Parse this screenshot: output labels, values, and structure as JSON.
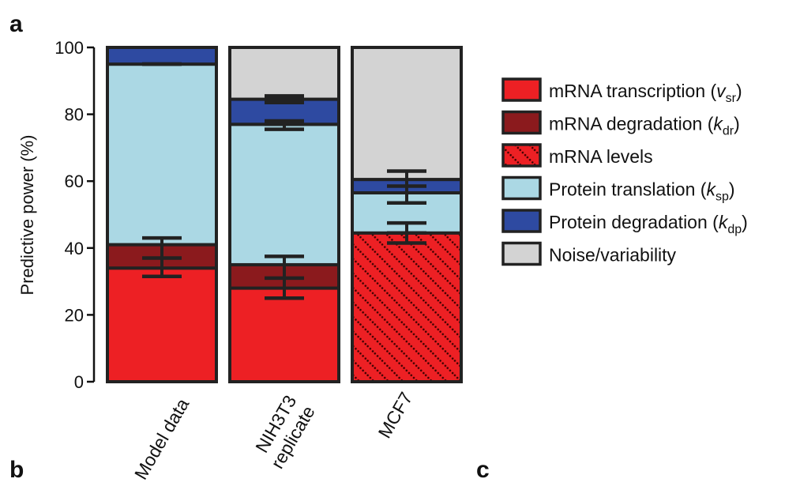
{
  "panel_labels": {
    "a": "a",
    "b": "b",
    "c": "c"
  },
  "chart_data": {
    "type": "bar",
    "stacked": true,
    "ylabel": "Predictive power (%)",
    "ylim": [
      0,
      100
    ],
    "yticks": [
      0,
      20,
      40,
      60,
      80,
      100
    ],
    "ytick_labels": [
      "0",
      "20",
      "40",
      "60",
      "80",
      "100"
    ],
    "categories": [
      {
        "lines": [
          "Model data"
        ]
      },
      {
        "lines": [
          "NIH3T3",
          "replicate"
        ]
      },
      {
        "lines": [
          "MCF7"
        ]
      }
    ],
    "series": [
      {
        "key": "mrna_transcription",
        "name_main": "mRNA transcription (",
        "name_italic": "v",
        "name_sub": "sr",
        "name_tail": ")",
        "color": "#ed2024",
        "values": [
          34,
          28,
          0
        ]
      },
      {
        "key": "mrna_degradation",
        "name_main": "mRNA degradation (",
        "name_italic": "k",
        "name_sub": "dr",
        "name_tail": ")",
        "color": "#8b1a1d",
        "values": [
          7,
          7,
          0
        ]
      },
      {
        "key": "mrna_levels",
        "name_main": "mRNA levels",
        "name_italic": "",
        "name_sub": "",
        "name_tail": "",
        "color": "#ed2024",
        "pattern": "dotted-diagonal",
        "values": [
          0,
          0,
          44.5
        ]
      },
      {
        "key": "protein_translation",
        "name_main": "Protein translation (",
        "name_italic": "k",
        "name_sub": "sp",
        "name_tail": ")",
        "color": "#abd8e4",
        "values": [
          54,
          42,
          12
        ]
      },
      {
        "key": "protein_degradation",
        "name_main": "Protein degradation (",
        "name_italic": "k",
        "name_sub": "dp",
        "name_tail": ")",
        "color": "#2e4aa1",
        "values": [
          5,
          7.5,
          4
        ]
      },
      {
        "key": "noise",
        "name_main": "Noise/variability",
        "name_italic": "",
        "name_sub": "",
        "name_tail": "",
        "color": "#d3d3d3",
        "values": [
          0,
          15.5,
          39.5
        ]
      }
    ],
    "error_bars": [
      [
        {
          "center": 37,
          "low": 31.5,
          "high": 43
        },
        {
          "center": 95,
          "low": 95,
          "high": 95
        }
      ],
      [
        {
          "center": 31,
          "low": 25,
          "high": 37.5
        },
        {
          "center": 77,
          "low": 75.5,
          "high": 78
        },
        {
          "center": 84.5,
          "low": 83.5,
          "high": 85.5
        }
      ],
      [
        {
          "center": 44.5,
          "low": 41.5,
          "high": 47.5
        },
        {
          "center": 58.5,
          "low": 53.5,
          "high": 63
        }
      ]
    ],
    "legend_position": "right",
    "grid": false
  }
}
